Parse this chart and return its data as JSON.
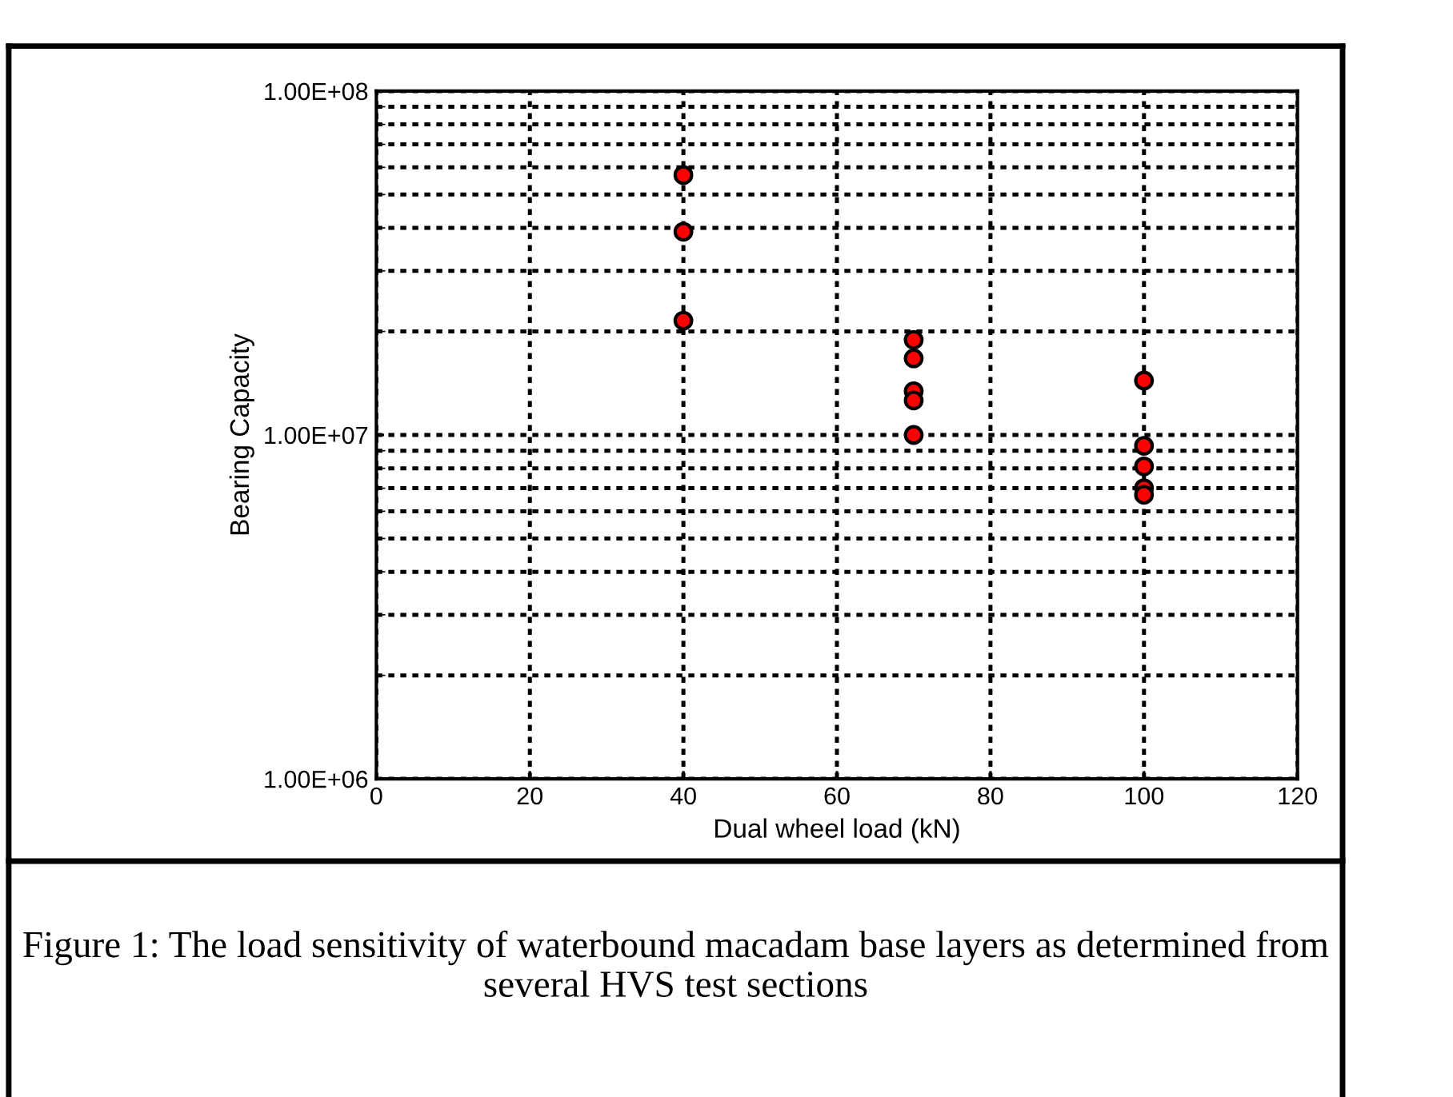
{
  "chart_data": {
    "type": "scatter",
    "xlabel": "Dual wheel load (kN)",
    "ylabel": "Bearing Capacity",
    "x": [
      40,
      40,
      40,
      70,
      70,
      70,
      70,
      70,
      100,
      100,
      100,
      100,
      100
    ],
    "values": [
      57000000,
      39000000,
      21500000,
      18900000,
      16700000,
      13400000,
      12600000,
      10000000,
      14400000,
      9300000,
      8100000,
      7000000,
      6700000
    ],
    "color": "#ff0000",
    "marker": "circle",
    "log": "y",
    "grid": true,
    "xlim": [
      0,
      120
    ],
    "xticks": [
      0,
      20,
      40,
      60,
      80,
      100,
      120
    ],
    "ylim": [
      1000000,
      100000000
    ],
    "yticks": [
      {
        "value": 1000000,
        "label": "1.00E+06"
      },
      {
        "value": 10000000,
        "label": "1.00E+07"
      },
      {
        "value": 100000000,
        "label": "1.00E+08"
      }
    ],
    "annotations": [
      "Figure 1: The load sensitivity of waterbound macadam base layers as determined from several HVS test sections"
    ]
  }
}
